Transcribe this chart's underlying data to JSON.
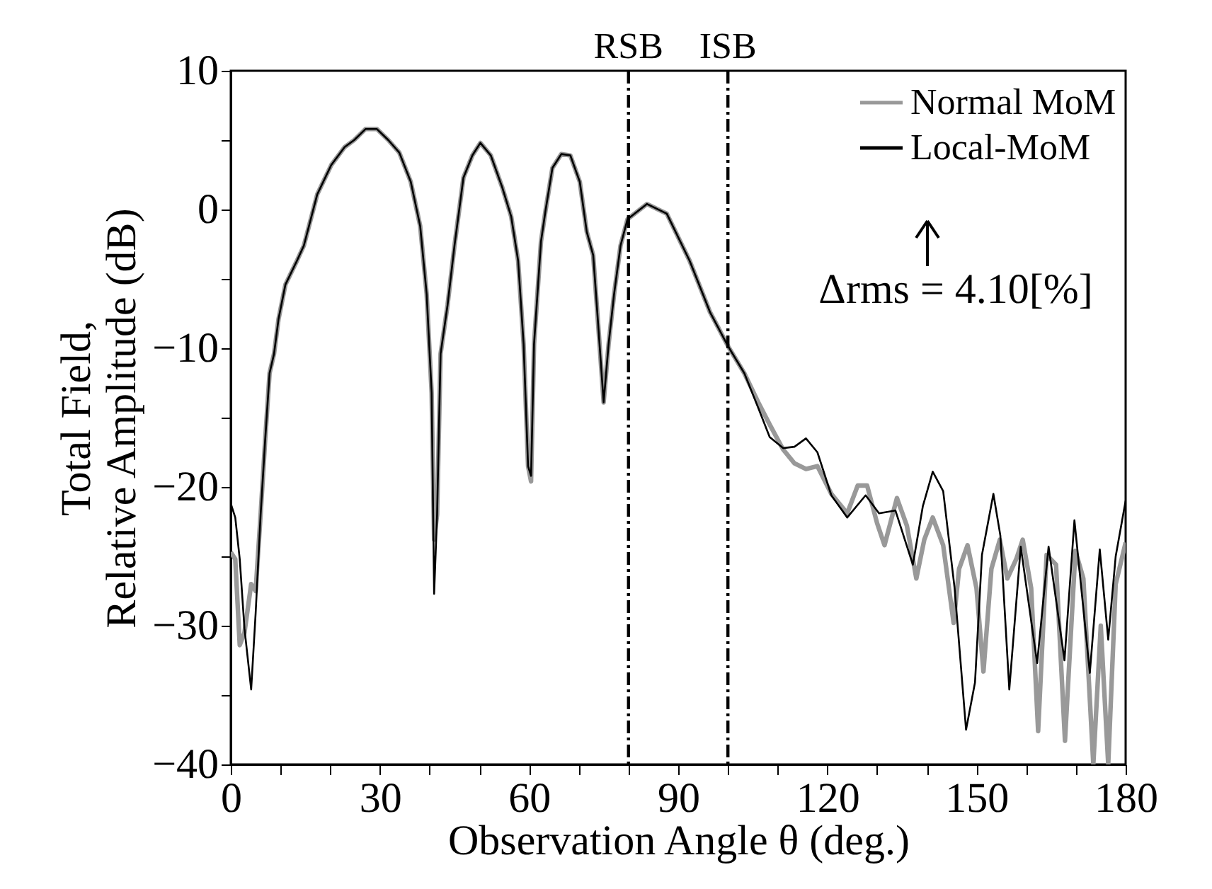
{
  "chart_data": {
    "type": "line",
    "xlabel": "Observation Angle θ (deg.)",
    "ylabel": "Total Field,\nRelative Amplitude (dB)",
    "xlim": [
      0,
      180
    ],
    "ylim": [
      -40,
      10
    ],
    "xticks": [
      0,
      {
        "value": 10,
        "label": null
      },
      {
        "value": 20,
        "label": null
      },
      30,
      {
        "value": 40,
        "label": null
      },
      {
        "value": 50,
        "label": null
      },
      60,
      {
        "value": 70,
        "label": null
      },
      {
        "value": 80,
        "label": null
      },
      90,
      {
        "value": 100,
        "label": null
      },
      {
        "value": 110,
        "label": null
      },
      120,
      {
        "value": 130,
        "label": null
      },
      {
        "value": 140,
        "label": null
      },
      150,
      {
        "value": 160,
        "label": null
      },
      {
        "value": 170,
        "label": null
      },
      180
    ],
    "yticks": [
      -40,
      {
        "value": -35,
        "label": null
      },
      -30,
      {
        "value": -25,
        "label": null
      },
      -20,
      {
        "value": -15,
        "label": null
      },
      -10,
      {
        "value": -5,
        "label": null
      },
      0,
      {
        "value": 5,
        "label": null
      },
      10
    ],
    "grid": false,
    "legend": "top right",
    "series": [
      {
        "name": "Normal MoM",
        "color": "#999999",
        "x": [
          0,
          0.9,
          1.8,
          2.75,
          4.1,
          5.0,
          6.0,
          6.9,
          7.8,
          8.7,
          9.6,
          11,
          13.3,
          14.7,
          17.4,
          20.2,
          22.9,
          24.8,
          27.1,
          29.4,
          31.7,
          33.9,
          36.2,
          38.1,
          39.4,
          40.4,
          40.9,
          41.5,
          42.2,
          43.6,
          45,
          46.8,
          48.6,
          50.2,
          52.3,
          54.6,
          56.4,
          57.8,
          58.9,
          59.8,
          60.4,
          61,
          62.4,
          63.3,
          64.7,
          66.5,
          68.3,
          70.2,
          71.6,
          72.9,
          73.9,
          75,
          76,
          77.1,
          78.4,
          79.8,
          83.7,
          87.7,
          92.3,
          96.4,
          100.1,
          103.3,
          106.1,
          108.4,
          111.1,
          113.4,
          115.7,
          118,
          120.8,
          124,
          126.1,
          128,
          130,
          131.5,
          134,
          136,
          137.9,
          139.5,
          141.2,
          143.3,
          145.4,
          146.5,
          148.2,
          150,
          151.4,
          153,
          154.7,
          156.2,
          158,
          159.3,
          161,
          162.4,
          164.1,
          166,
          167.8,
          169.9,
          171.5,
          173.5,
          175,
          176.5,
          178,
          180
        ],
        "values": [
          -24.7,
          -25.2,
          -31.4,
          -30.5,
          -27,
          -27.5,
          -22,
          -16.7,
          -11.8,
          -10.4,
          -7.9,
          -5.4,
          -3.7,
          -2.6,
          1.1,
          3.2,
          4.5,
          5.0,
          5.8,
          5.8,
          5.0,
          4.1,
          2.0,
          -1.2,
          -6.1,
          -13.2,
          -23.8,
          -22,
          -10.4,
          -6.9,
          -2.6,
          2.3,
          3.9,
          4.8,
          3.9,
          1.6,
          -0.5,
          -3.7,
          -9.7,
          -18.5,
          -19.6,
          -9.7,
          -2.3,
          -0.1,
          3.0,
          4.0,
          3.9,
          2.0,
          -1.6,
          -3.3,
          -8.3,
          -13.9,
          -9.7,
          -6.1,
          -2.6,
          -0.7,
          0.4,
          -0.3,
          -3.7,
          -7.4,
          -9.9,
          -11.8,
          -13.9,
          -15.5,
          -17.3,
          -18.3,
          -18.7,
          -18.5,
          -20.5,
          -21.9,
          -19.9,
          -19.9,
          -22.6,
          -24.2,
          -20.8,
          -22.8,
          -26.6,
          -23.8,
          -22.2,
          -24.2,
          -29.8,
          -25.9,
          -24.2,
          -27.3,
          -33.3,
          -25.9,
          -23.8,
          -26.6,
          -25.2,
          -23.8,
          -27.3,
          -37.6,
          -24.9,
          -25.6,
          -38.3,
          -24.6,
          -26.6,
          -40,
          -30,
          -40,
          -27,
          -24
        ]
      },
      {
        "name": "Local-MoM",
        "color": "#000000",
        "x": [
          0,
          0.9,
          1.8,
          2.75,
          4.1,
          5.0,
          6.0,
          6.9,
          7.8,
          8.7,
          9.6,
          11,
          13.3,
          14.7,
          17.4,
          20.2,
          22.9,
          24.8,
          27.1,
          29.4,
          31.7,
          33.9,
          36.2,
          38.1,
          39.4,
          40.4,
          40.9,
          41.5,
          42.2,
          43.6,
          45,
          46.8,
          48.6,
          50.2,
          52.3,
          54.6,
          56.4,
          57.8,
          58.9,
          59.8,
          60.4,
          61,
          62.4,
          63.3,
          64.7,
          66.5,
          68.3,
          70.2,
          71.6,
          72.9,
          73.9,
          75,
          76,
          77.1,
          78.4,
          79.8,
          83.7,
          87.7,
          92.3,
          96.4,
          100.1,
          103.3,
          106.1,
          108.4,
          111.1,
          113.4,
          115.7,
          118,
          120.8,
          124,
          127.7,
          130.4,
          133.7,
          137.2,
          139.2,
          141.2,
          143.3,
          145.6,
          147.9,
          149.7,
          151.1,
          153.4,
          154.8,
          156.6,
          158.9,
          162.2,
          164.5,
          167.7,
          169.7,
          172.8,
          174.8,
          176.5,
          178,
          180
        ],
        "values": [
          -21.2,
          -22.2,
          -25.2,
          -30.2,
          -34.6,
          -29.1,
          -22,
          -16.7,
          -11.8,
          -10.4,
          -7.9,
          -5.4,
          -3.7,
          -2.6,
          1.1,
          3.2,
          4.5,
          5.0,
          5.8,
          5.8,
          5.0,
          4.1,
          2.0,
          -1.2,
          -6.1,
          -13.2,
          -27.7,
          -22,
          -10.4,
          -6.9,
          -2.6,
          2.3,
          3.9,
          4.8,
          3.9,
          1.6,
          -0.5,
          -3.7,
          -9.7,
          -18.5,
          -19.2,
          -9.7,
          -2.3,
          -0.1,
          3.0,
          4.0,
          3.9,
          2.0,
          -1.6,
          -3.3,
          -8.3,
          -13.9,
          -9.7,
          -6.1,
          -2.6,
          -0.7,
          0.4,
          -0.3,
          -3.7,
          -7.4,
          -9.9,
          -11.8,
          -14.3,
          -16.4,
          -17.2,
          -17.1,
          -16.5,
          -17.5,
          -20.6,
          -22.2,
          -20.6,
          -21.9,
          -21.7,
          -25.6,
          -21.4,
          -18.9,
          -20.3,
          -27.3,
          -37.5,
          -34.1,
          -24.9,
          -20.5,
          -23.5,
          -34.6,
          -24.3,
          -32.7,
          -24.3,
          -32.5,
          -22.4,
          -33.4,
          -24.5,
          -31,
          -25,
          -21
        ]
      }
    ],
    "ref_lines": [
      {
        "axis": "x",
        "value": 80,
        "label": "RSB",
        "line_style": "dashdot"
      },
      {
        "axis": "x",
        "value": 100,
        "label": "ISB",
        "line_style": "dashdot"
      }
    ],
    "annotations": [
      "Δrms = 4.10[%]"
    ]
  }
}
